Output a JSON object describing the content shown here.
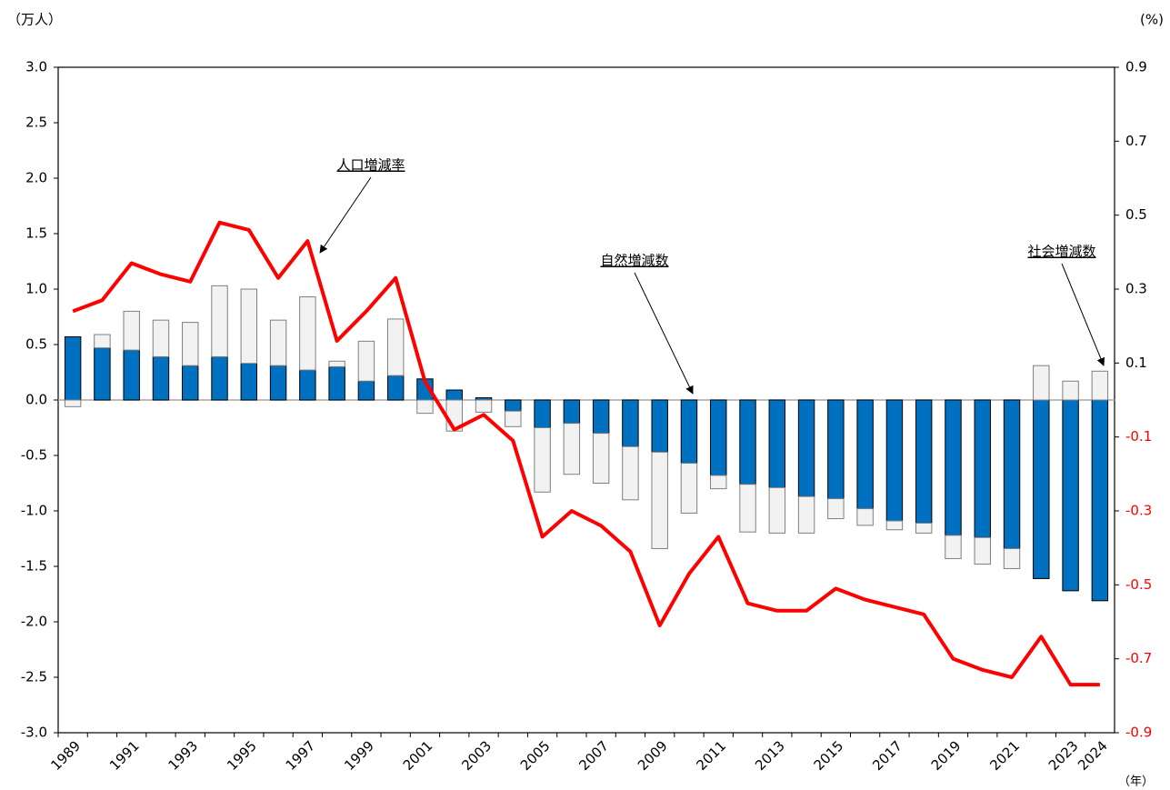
{
  "chart_data": {
    "type": "bar-line",
    "y_axis_label": "（万人）",
    "y2_axis_label": "(%)",
    "x_axis_label": "（年）",
    "categories": [
      "1989",
      null,
      "1991",
      null,
      "1993",
      null,
      "1995",
      null,
      "1997",
      null,
      "1999",
      null,
      "2001",
      null,
      "2003",
      null,
      "2005",
      null,
      "2007",
      null,
      "2009",
      null,
      "2011",
      null,
      "2013",
      null,
      "2015",
      null,
      "2017",
      null,
      "2019",
      null,
      "2021",
      null,
      "2023",
      "2024"
    ],
    "series": [
      {
        "name": "自然増減数",
        "type": "bar",
        "color": "#0070c0",
        "stroke": "#000000",
        "values": [
          0.57,
          0.47,
          0.45,
          0.39,
          0.31,
          0.39,
          0.33,
          0.31,
          0.27,
          0.3,
          0.17,
          0.22,
          0.19,
          0.09,
          0.02,
          -0.1,
          -0.25,
          -0.21,
          -0.3,
          -0.42,
          -0.47,
          -0.57,
          -0.68,
          -0.76,
          -0.79,
          -0.87,
          -0.89,
          -0.98,
          -1.09,
          -1.11,
          -1.22,
          -1.24,
          -1.34,
          -1.61,
          -1.72,
          -1.81
        ]
      },
      {
        "name": "社会増減数",
        "type": "bar",
        "color": "#f2f2f2",
        "stroke": "#7f7f7f",
        "values": [
          -0.06,
          0.12,
          0.35,
          0.33,
          0.39,
          0.64,
          0.67,
          0.41,
          0.66,
          0.05,
          0.36,
          0.51,
          -0.12,
          -0.28,
          -0.11,
          -0.14,
          -0.58,
          -0.46,
          -0.45,
          -0.48,
          -0.87,
          -0.45,
          -0.12,
          -0.43,
          -0.41,
          -0.33,
          -0.18,
          -0.15,
          -0.08,
          -0.09,
          -0.21,
          -0.24,
          -0.18,
          0.31,
          0.17,
          0.26
        ]
      },
      {
        "name": "人口増減率",
        "type": "line",
        "axis": "y2",
        "color": "#ff0000",
        "values": [
          0.24,
          0.27,
          0.37,
          0.34,
          0.32,
          0.48,
          0.46,
          0.33,
          0.43,
          0.16,
          0.24,
          0.33,
          0.05,
          -0.08,
          -0.04,
          -0.11,
          -0.37,
          -0.3,
          -0.34,
          -0.41,
          -0.61,
          -0.47,
          -0.37,
          -0.55,
          -0.57,
          -0.57,
          -0.51,
          -0.54,
          -0.56,
          -0.58,
          -0.7,
          -0.73,
          -0.75,
          -0.64,
          -0.77,
          -0.77
        ]
      }
    ],
    "ylim": [
      -3,
      3
    ],
    "yticks": [
      {
        "value": -3,
        "label": "-3.0"
      },
      -2.5,
      {
        "value": -2,
        "label": "-2.0"
      },
      -1.5,
      {
        "value": -1,
        "label": "-1.0"
      },
      -0.5,
      {
        "value": 0,
        "label": "0.0"
      },
      0.5,
      {
        "value": 1,
        "label": "1.0"
      },
      1.5,
      {
        "value": 2,
        "label": "2.0"
      },
      2.5,
      {
        "value": 3,
        "label": "3.0"
      }
    ],
    "y2lim": [
      -0.9,
      0.9
    ],
    "y2ticks": [
      -0.9,
      -0.7,
      -0.5,
      -0.3,
      -0.1,
      0.1,
      0.3,
      0.5,
      0.7,
      0.9
    ],
    "y2_negative_tick_color": "#ff0000",
    "grid": false
  }
}
